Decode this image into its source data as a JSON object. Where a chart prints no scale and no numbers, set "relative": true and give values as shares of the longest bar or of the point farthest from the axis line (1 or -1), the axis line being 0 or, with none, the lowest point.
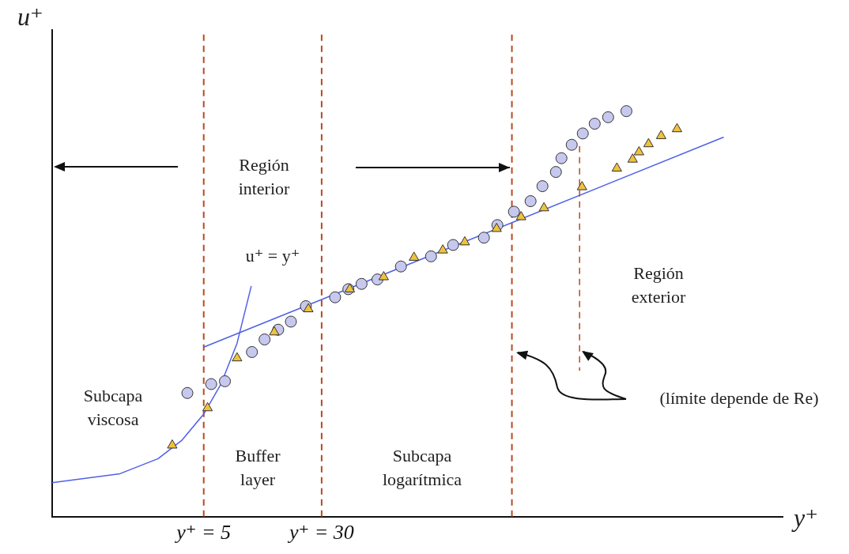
{
  "chart_data": {
    "type": "scatter",
    "xlabel": "y⁺",
    "ylabel": "u⁺",
    "log": "x",
    "relative": true,
    "xlim": [
      0.5,
      33000
    ],
    "xticks": [
      {
        "value": 5,
        "label": "y⁺ = 5"
      },
      {
        "value": 30,
        "label": "y⁺ = 30"
      }
    ],
    "series": [
      {
        "type": "scatter",
        "marker": "circle",
        "color": "#c6c8ee",
        "x": [
          3.9,
          5.6,
          6.9,
          10.4,
          12.6,
          15.5,
          18.8,
          23.6,
          36.8,
          45,
          55,
          70,
          100,
          158,
          221,
          353,
          433,
          557,
          717,
          859,
          1054,
          1146,
          1340,
          1585,
          1900,
          2330,
          3076
        ],
        "values": [
          0.305,
          0.327,
          0.334,
          0.406,
          0.437,
          0.461,
          0.481,
          0.519,
          0.541,
          0.561,
          0.574,
          0.585,
          0.617,
          0.642,
          0.67,
          0.688,
          0.719,
          0.752,
          0.778,
          0.815,
          0.85,
          0.884,
          0.917,
          0.945,
          0.969,
          0.985,
          1.0
        ]
      },
      {
        "type": "scatter",
        "marker": "triangle",
        "color": "#f0c23c",
        "x": [
          3.1,
          5.3,
          8.3,
          14.6,
          24.5,
          46,
          77,
          122,
          189,
          264,
          428,
          621,
          879,
          1567,
          2660,
          3380,
          3725,
          4305,
          5215,
          6635
        ],
        "values": [
          0.176,
          0.268,
          0.391,
          0.455,
          0.512,
          0.561,
          0.591,
          0.639,
          0.657,
          0.677,
          0.71,
          0.739,
          0.761,
          0.813,
          0.859,
          0.881,
          0.899,
          0.919,
          0.939,
          0.956
        ]
      },
      {
        "type": "line",
        "marker": "none",
        "color": "#5060e8",
        "x": [
          0.5,
          1.4,
          2.5,
          3.6,
          5,
          6.5,
          8.3,
          10.3
        ],
        "values": [
          0.084,
          0.106,
          0.143,
          0.189,
          0.253,
          0.327,
          0.428,
          0.569
        ]
      },
      {
        "type": "line",
        "marker": "none",
        "color": "#5060e8",
        "x": [
          5,
          13490
        ],
        "values": [
          0.418,
          0.936
        ]
      },
      {
        "type": "line",
        "marker": "none",
        "line_style": "dashed",
        "color": "#b84a22",
        "x": [
          1510,
          1510
        ],
        "values": [
          0.914,
          0.36
        ]
      }
    ],
    "ref_lines": [
      {
        "axis": "x",
        "value": 5,
        "color": "#b84a22",
        "line_style": "dashed"
      },
      {
        "axis": "x",
        "value": 30,
        "color": "#b84a22",
        "line_style": "dashed"
      },
      {
        "axis": "x",
        "value": 540,
        "color": "#b84a22",
        "line_style": "dashed"
      }
    ],
    "annotations": [
      "Región\ninterior",
      "Región\nexterior",
      "Subcapa\nviscosa",
      "Buffer\nlayer",
      "Subcapa\nlogarítmica",
      "u⁺ = y⁺",
      "(límite depende de Re)"
    ]
  }
}
